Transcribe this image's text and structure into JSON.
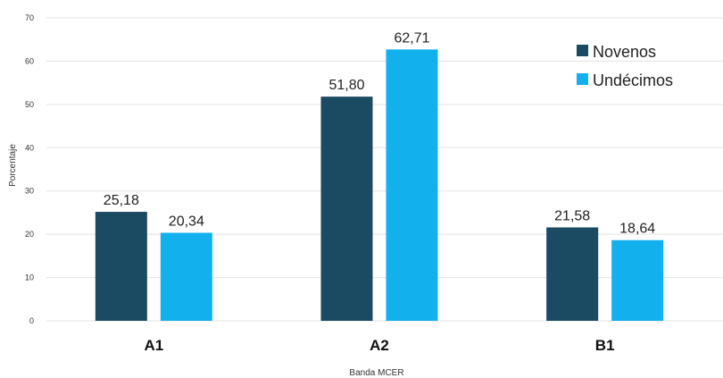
{
  "chart_data": {
    "type": "bar",
    "categories": [
      "A1",
      "A2",
      "B1"
    ],
    "series": [
      {
        "name": "Novenos",
        "values": [
          25.18,
          51.8,
          21.58
        ],
        "labels": [
          "25,18",
          "51,80",
          "21,58"
        ],
        "color": "#1b4a63"
      },
      {
        "name": "Undécimos",
        "values": [
          20.34,
          62.71,
          18.64
        ],
        "labels": [
          "20,34",
          "62,71",
          "18,64"
        ],
        "color": "#12b0ec"
      }
    ],
    "xlabel": "Banda MCER",
    "ylabel": "Porcentaje",
    "ylim": [
      0,
      70
    ],
    "yticks": [
      "0",
      "10",
      "20",
      "30",
      "40",
      "50",
      "60",
      "70"
    ],
    "grid": true,
    "legend_position": "top-right"
  }
}
